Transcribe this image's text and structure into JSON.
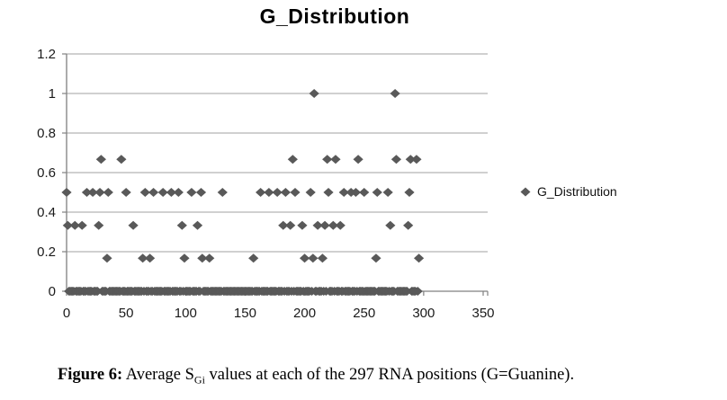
{
  "chart": {
    "title": "G_Distribution",
    "legend_label": "G_Distribution",
    "colors": {
      "marker": "#595959",
      "gridline": "#b3b3b3",
      "axis": "#808080",
      "tick_label": "#1a1a1a",
      "background": "#ffffff"
    }
  },
  "chart_data": {
    "type": "scatter",
    "title": "G_Distribution",
    "legend": [
      "G_Distribution"
    ],
    "legend_position": "right",
    "marker": "diamond",
    "grid": "horizontal",
    "xlim": [
      0,
      350
    ],
    "ylim": [
      0,
      1.2
    ],
    "x_ticks": [
      {
        "value": 0,
        "label": "0"
      },
      {
        "value": 50,
        "label": "50"
      },
      {
        "value": 100,
        "label": "100"
      },
      {
        "value": 150,
        "label": "150"
      },
      {
        "value": 200,
        "label": "200"
      },
      {
        "value": 250,
        "label": "250"
      },
      {
        "value": 300,
        "label": "300"
      },
      {
        "value": 350,
        "label": "350"
      }
    ],
    "y_ticks": [
      {
        "value": 0,
        "label": "0"
      },
      {
        "value": 0.2,
        "label": "0.2"
      },
      {
        "value": 0.4,
        "label": "0.4"
      },
      {
        "value": 0.6,
        "label": "0.6"
      },
      {
        "value": 0.8,
        "label": "0.8"
      },
      {
        "value": 1,
        "label": "1"
      },
      {
        "value": 1.2,
        "label": "1.2"
      }
    ],
    "series": [
      {
        "name": "G_Distribution",
        "levels": [
          {
            "y": 1,
            "x": [
              208,
              276
            ]
          },
          {
            "y": 0.667,
            "x": [
              29,
              46,
              190,
              219,
              226,
              245,
              277,
              289,
              294
            ]
          },
          {
            "y": 0.5,
            "x": [
              0,
              17,
              22,
              28,
              35,
              50,
              66,
              73,
              81,
              88,
              94,
              105,
              113,
              131,
              163,
              170,
              177,
              184,
              192,
              205,
              220,
              233,
              239,
              243,
              250,
              261,
              270,
              288
            ]
          },
          {
            "y": 0.333,
            "x": [
              1,
              7,
              13,
              27,
              56,
              97,
              110,
              182,
              188,
              198,
              211,
              217,
              224,
              230,
              272,
              287
            ]
          },
          {
            "y": 0.167,
            "x": [
              34,
              64,
              70,
              99,
              114,
              120,
              157,
              200,
              207,
              215,
              260,
              296
            ]
          },
          {
            "y": 0,
            "x": [
              2,
              3,
              4,
              5,
              6,
              8,
              9,
              10,
              11,
              12,
              14,
              15,
              16,
              18,
              19,
              20,
              21,
              23,
              24,
              25,
              26,
              30,
              31,
              32,
              33,
              36,
              37,
              38,
              39,
              40,
              41,
              42,
              43,
              44,
              45,
              47,
              48,
              49,
              51,
              52,
              53,
              54,
              55,
              57,
              58,
              59,
              60,
              61,
              62,
              63,
              65,
              67,
              68,
              69,
              71,
              72,
              74,
              75,
              76,
              77,
              78,
              79,
              80,
              82,
              83,
              84,
              85,
              86,
              87,
              89,
              90,
              91,
              92,
              93,
              95,
              96,
              98,
              100,
              101,
              102,
              103,
              104,
              106,
              107,
              108,
              109,
              111,
              112,
              115,
              116,
              117,
              118,
              119,
              121,
              122,
              123,
              124,
              125,
              126,
              127,
              128,
              129,
              130,
              132,
              133,
              134,
              135,
              136,
              137,
              138,
              139,
              140,
              141,
              142,
              143,
              144,
              145,
              146,
              147,
              148,
              149,
              150,
              151,
              152,
              153,
              154,
              155,
              156,
              158,
              159,
              160,
              161,
              162,
              164,
              165,
              166,
              167,
              168,
              169,
              171,
              172,
              173,
              174,
              175,
              176,
              178,
              179,
              180,
              181,
              183,
              185,
              186,
              187,
              189,
              191,
              193,
              194,
              195,
              196,
              197,
              199,
              201,
              202,
              203,
              204,
              206,
              209,
              210,
              212,
              213,
              214,
              216,
              218,
              221,
              222,
              223,
              225,
              227,
              228,
              229,
              231,
              232,
              234,
              235,
              236,
              237,
              238,
              240,
              241,
              242,
              244,
              246,
              247,
              248,
              249,
              251,
              252,
              253,
              254,
              255,
              256,
              257,
              258,
              259,
              262,
              263,
              264,
              265,
              266,
              267,
              268,
              269,
              271,
              273,
              274,
              275,
              278,
              279,
              280,
              281,
              282,
              283,
              284,
              285,
              286,
              290,
              291,
              292,
              293,
              295
            ]
          }
        ]
      }
    ]
  },
  "caption": {
    "prefix": "Figure 6:",
    "text_before_sub": " Average S",
    "subscript": "Gi",
    "text_after_sub": " values at each of the 297 RNA positions (G=Guanine)."
  }
}
